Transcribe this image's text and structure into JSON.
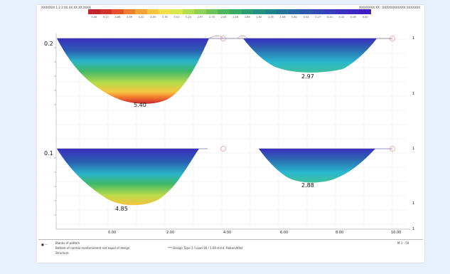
{
  "header": {
    "left_text": "XXXXXXX 1.2.3 XX.XX XX.XX.XXXX",
    "right_text": "XXXXXXXX XX · XXXXXXXXXXXX XXXXXXX"
  },
  "legend": {
    "colors": [
      "#c0272d",
      "#d2342a",
      "#e4522b",
      "#ef7d2f",
      "#f5a236",
      "#f7c43f",
      "#f2df48",
      "#d9e74d",
      "#b4de4f",
      "#8fd251",
      "#6cc456",
      "#4fb65c",
      "#3aa965",
      "#2c9c72",
      "#24907f",
      "#20838c",
      "#227598",
      "#2767a4",
      "#2d58ae",
      "#324ab6",
      "#373dbc",
      "#3b31c0",
      "#3e27c2",
      "#3f1fc3"
    ],
    "ticks": [
      "5.40",
      "5.13",
      "4.86",
      "4.59",
      "4.32",
      "4.05",
      "3.78",
      "3.51",
      "3.24",
      "2.97",
      "2.70",
      "2.43",
      "2.16",
      "1.89",
      "1.62",
      "1.35",
      "1.08",
      "0.81",
      "0.54",
      "0.27",
      "0.20",
      "0.10",
      "0.05",
      "0.00"
    ]
  },
  "values": {
    "top_left_start": "0.2",
    "top_left_max": "5.40",
    "top_right_max": "2.97",
    "bottom_left_start": "0.1",
    "bottom_left_max": "4.85",
    "bottom_right_max": "2.88"
  },
  "x_axis": {
    "ticks": [
      "0.00",
      "2.00",
      "4.00",
      "6.00",
      "8.00",
      "10.00"
    ]
  },
  "right_axis": {
    "marks": [
      "1",
      "1",
      "1",
      "1",
      "1"
    ]
  },
  "footer": {
    "legend_line1": "Blanks of pattern",
    "legend_line2": "Bottom of normal reinforcement not equal of design",
    "legend_line3": "Structure",
    "middle_text": "*** Design Type 1 / Load 30 / 1.00 d.d.d. Rebars/Kfat",
    "right_text": "M 1 : 50"
  }
}
